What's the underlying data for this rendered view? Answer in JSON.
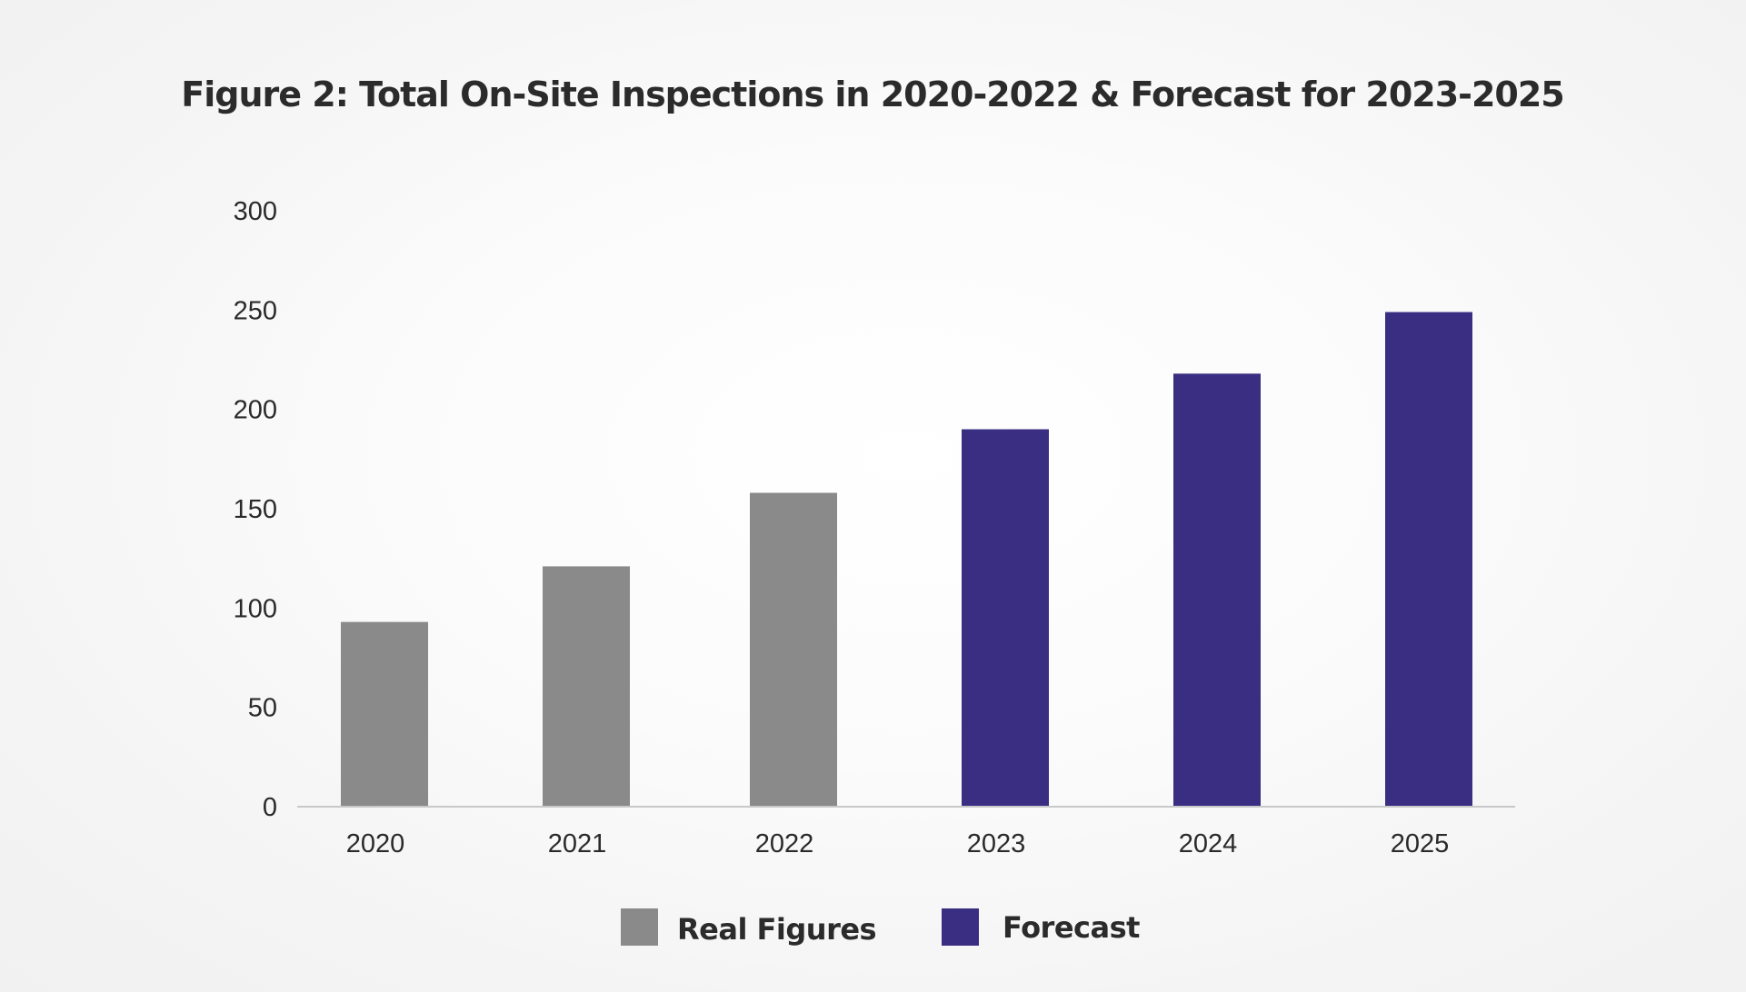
{
  "chart_data": {
    "type": "bar",
    "title": "Figure 2: Total On-Site Inspections in 2020-2022 & Forecast for 2023-2025",
    "xlabel": "",
    "ylabel": "",
    "categories": [
      "2020",
      "2021",
      "2022",
      "2023",
      "2024",
      "2025"
    ],
    "values": [
      93,
      121,
      158,
      190,
      218,
      249
    ],
    "series_membership": [
      "Real Figures",
      "Real Figures",
      "Real Figures",
      "Forecast",
      "Forecast",
      "Forecast"
    ],
    "ylim": [
      0,
      300
    ],
    "yticks": [
      "0",
      "50",
      "100",
      "150",
      "200",
      "250",
      "300"
    ],
    "grid": false,
    "legend": {
      "position": "bottom-center",
      "entries": [
        {
          "name": "Real Figures",
          "color": "#8a8a8a"
        },
        {
          "name": "Forecast",
          "color": "#3a2e82"
        }
      ]
    }
  },
  "colors": {
    "real": "#8a8a8a",
    "forecast": "#3a2e82",
    "axis": "#c8c8c8"
  }
}
